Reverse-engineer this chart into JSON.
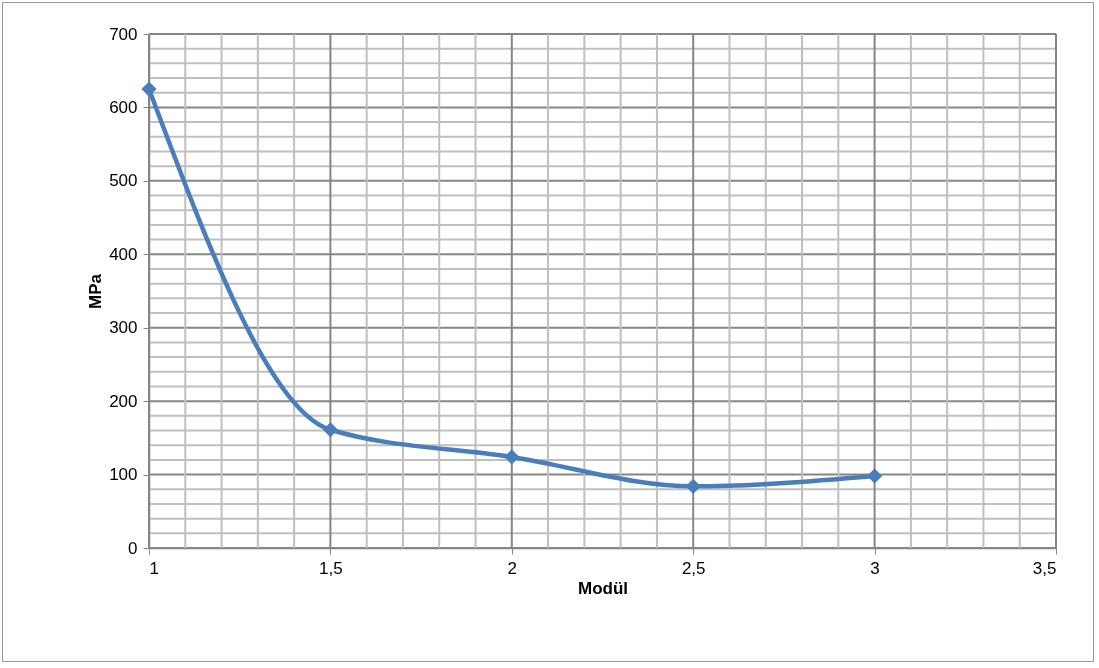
{
  "chart_data": {
    "type": "line",
    "xlabel": "Modül",
    "ylabel": "MPa",
    "x": [
      1,
      1.5,
      2,
      2.5,
      3
    ],
    "series": [
      {
        "color": "#4a7ebb",
        "values": [
          625,
          161,
          124,
          84,
          98
        ]
      }
    ],
    "xlim": [
      1,
      3.5
    ],
    "xticks": [
      1,
      {
        "value": 1.1,
        "label": null
      },
      {
        "value": 1.2,
        "label": null
      },
      {
        "value": 1.3,
        "label": null
      },
      {
        "value": 1.4,
        "label": null
      },
      {
        "value": 1.5,
        "label": "1,5"
      },
      {
        "value": 1.6,
        "label": null
      },
      {
        "value": 1.7,
        "label": null
      },
      {
        "value": 1.8,
        "label": null
      },
      {
        "value": 1.9,
        "label": null
      },
      2,
      {
        "value": 2.1,
        "label": null
      },
      {
        "value": 2.2,
        "label": null
      },
      {
        "value": 2.3,
        "label": null
      },
      {
        "value": 2.4,
        "label": null
      },
      {
        "value": 2.5,
        "label": "2,5"
      },
      {
        "value": 2.6,
        "label": null
      },
      {
        "value": 2.7,
        "label": null
      },
      {
        "value": 2.8,
        "label": null
      },
      {
        "value": 2.9,
        "label": null
      },
      3,
      {
        "value": 3.1,
        "label": null
      },
      {
        "value": 3.2,
        "label": null
      },
      {
        "value": 3.3,
        "label": null
      },
      {
        "value": 3.4,
        "label": null
      },
      {
        "value": 3.5,
        "label": "3,5"
      }
    ],
    "ylim": [
      0,
      700
    ],
    "yticks": [
      0,
      {
        "value": 20,
        "label": null
      },
      {
        "value": 40,
        "label": null
      },
      {
        "value": 60,
        "label": null
      },
      {
        "value": 80,
        "label": null
      },
      100,
      {
        "value": 120,
        "label": null
      },
      {
        "value": 140,
        "label": null
      },
      {
        "value": 160,
        "label": null
      },
      {
        "value": 180,
        "label": null
      },
      200,
      {
        "value": 220,
        "label": null
      },
      {
        "value": 240,
        "label": null
      },
      {
        "value": 260,
        "label": null
      },
      {
        "value": 280,
        "label": null
      },
      300,
      {
        "value": 320,
        "label": null
      },
      {
        "value": 340,
        "label": null
      },
      {
        "value": 360,
        "label": null
      },
      {
        "value": 380,
        "label": null
      },
      400,
      {
        "value": 420,
        "label": null
      },
      {
        "value": 440,
        "label": null
      },
      {
        "value": 460,
        "label": null
      },
      {
        "value": 480,
        "label": null
      },
      500,
      {
        "value": 520,
        "label": null
      },
      {
        "value": 540,
        "label": null
      },
      {
        "value": 560,
        "label": null
      },
      {
        "value": 580,
        "label": null
      },
      600,
      {
        "value": 620,
        "label": null
      },
      {
        "value": 640,
        "label": null
      },
      {
        "value": 660,
        "label": null
      },
      {
        "value": 680,
        "label": null
      },
      700
    ],
    "grid": true,
    "marker": "diamond",
    "line_style": "solid"
  }
}
